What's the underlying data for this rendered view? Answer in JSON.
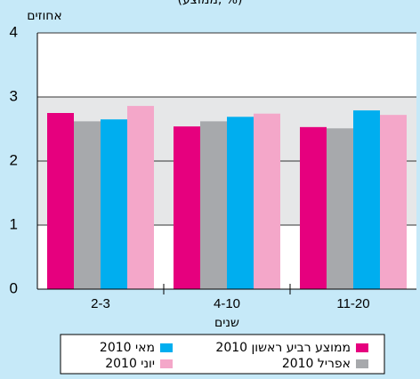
{
  "chart_data": {
    "type": "bar",
    "subtitle": "(ממוצע, %)",
    "y_label": "אחוזים",
    "x_label": "שנים",
    "categories": [
      "2-3",
      "4-10",
      "11-20"
    ],
    "series": [
      {
        "name": "ממוצע רביע ראשון 2010",
        "color": "#e6007e",
        "values": [
          2.75,
          2.54,
          2.53
        ]
      },
      {
        "name": "אפריל 2010",
        "color": "#a7a9ac",
        "values": [
          2.62,
          2.62,
          2.51
        ]
      },
      {
        "name": "מאי 2010",
        "color": "#00aeef",
        "values": [
          2.65,
          2.69,
          2.79
        ]
      },
      {
        "name": "יוני 2010",
        "color": "#f4a7c9",
        "values": [
          2.86,
          2.74,
          2.72
        ]
      }
    ],
    "ylim": [
      0,
      4
    ],
    "yticks": [
      0,
      1,
      2,
      3,
      4
    ],
    "grid": true
  }
}
